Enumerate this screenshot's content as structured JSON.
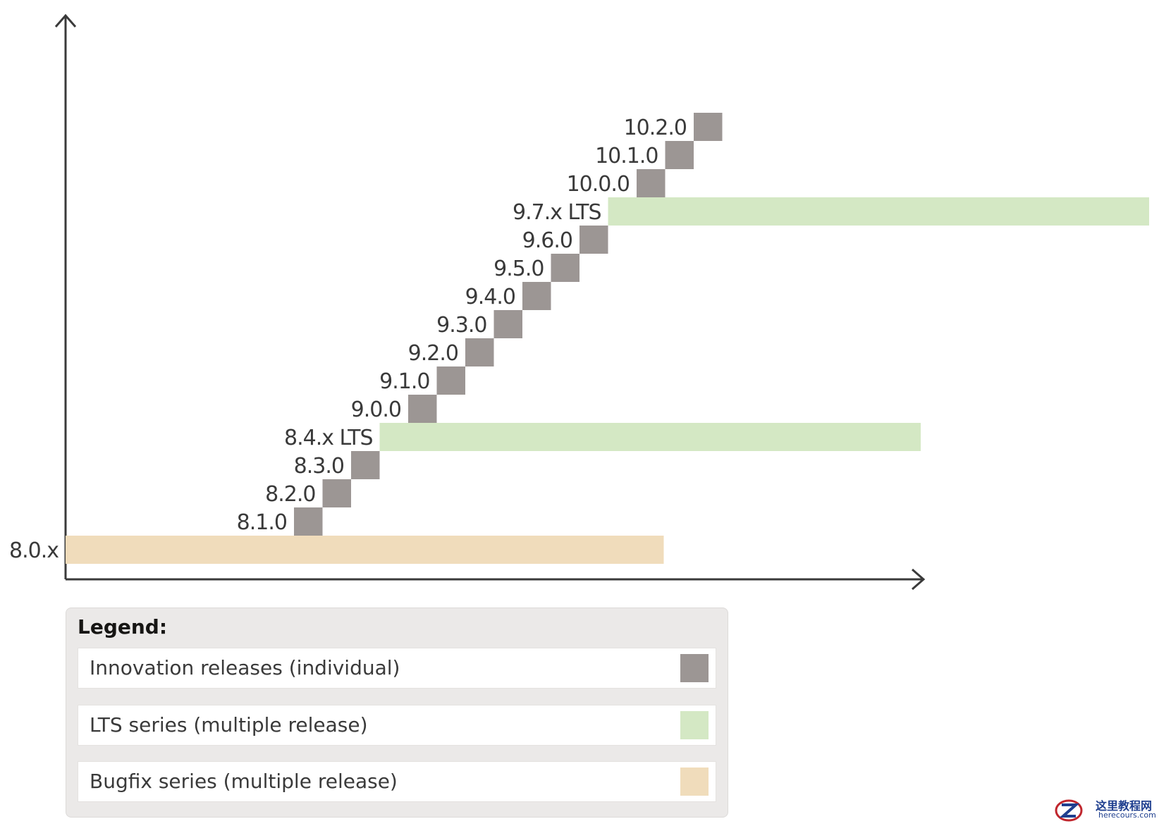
{
  "releases": [
    {
      "label": "8.0.x",
      "kind": "bugfix",
      "slot": 0,
      "end": 21
    },
    {
      "label": "8.1.0",
      "kind": "innovation",
      "slot": 8
    },
    {
      "label": "8.2.0",
      "kind": "innovation",
      "slot": 9
    },
    {
      "label": "8.3.0",
      "kind": "innovation",
      "slot": 10
    },
    {
      "label": "8.4.x LTS",
      "kind": "lts",
      "slot": 11,
      "end": 30
    },
    {
      "label": "9.0.0",
      "kind": "innovation",
      "slot": 12
    },
    {
      "label": "9.1.0",
      "kind": "innovation",
      "slot": 13
    },
    {
      "label": "9.2.0",
      "kind": "innovation",
      "slot": 14
    },
    {
      "label": "9.3.0",
      "kind": "innovation",
      "slot": 15
    },
    {
      "label": "9.4.0",
      "kind": "innovation",
      "slot": 16
    },
    {
      "label": "9.5.0",
      "kind": "innovation",
      "slot": 17
    },
    {
      "label": "9.6.0",
      "kind": "innovation",
      "slot": 18
    },
    {
      "label": "9.7.x LTS",
      "kind": "lts",
      "slot": 19,
      "end": 38
    },
    {
      "label": "10.0.0",
      "kind": "innovation",
      "slot": 20
    },
    {
      "label": "10.1.0",
      "kind": "innovation",
      "slot": 21
    },
    {
      "label": "10.2.0",
      "kind": "innovation",
      "slot": 22
    }
  ],
  "colors": {
    "innovation": "#9c9694",
    "lts": "#d4e8c4",
    "bugfix": "#f0dcbb",
    "axis": "#3a3a3a"
  },
  "legend": {
    "title": "Legend:",
    "items": [
      {
        "label": "Innovation releases (individual)",
        "kind": "innovation"
      },
      {
        "label": "LTS series (multiple release)",
        "kind": "lts"
      },
      {
        "label": "Bugfix series (multiple release)",
        "kind": "bugfix"
      }
    ]
  },
  "watermark": {
    "text": "这里教程网",
    "sub": "herecours.com"
  }
}
